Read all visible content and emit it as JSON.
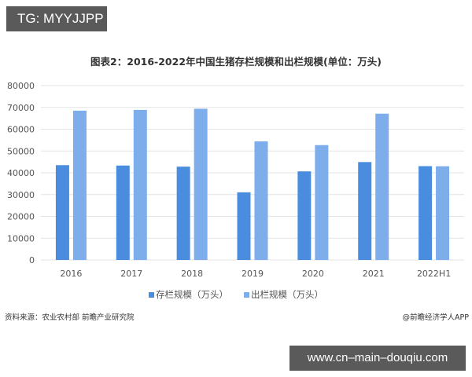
{
  "overlay": {
    "top_badge": "TG: MYYJJPP",
    "bottom_badge": "www.cn–main–douqiu.com"
  },
  "footer": {
    "source": "资料来源：农业农村部 前瞻产业研究院",
    "copyright": "@前瞻经济学人APP"
  },
  "colors": {
    "series1": "#4a8ddf",
    "series2": "#7dadea",
    "grid": "#e3e3e3",
    "axis_text": "#555555"
  },
  "chart_data": {
    "type": "bar",
    "title": "图表2：2016-2022年中国生猪存栏规模和出栏规模(单位：万头)",
    "xlabel": "",
    "ylabel": "",
    "categories": [
      "2016",
      "2017",
      "2018",
      "2019",
      "2020",
      "2021",
      "2022H1"
    ],
    "series": [
      {
        "name": "存栏规模（万头）",
        "values": [
          43504,
          43325,
          42817,
          31041,
          40650,
          44922,
          43057
        ]
      },
      {
        "name": "出栏规模（万头）",
        "values": [
          68502,
          68861,
          69382,
          54419,
          52704,
          67128,
          43000
        ]
      }
    ],
    "ylim": [
      0,
      80000
    ],
    "yticks": [
      0,
      10000,
      20000,
      30000,
      40000,
      50000,
      60000,
      70000,
      80000
    ],
    "grid": true,
    "legend_position": "bottom"
  }
}
